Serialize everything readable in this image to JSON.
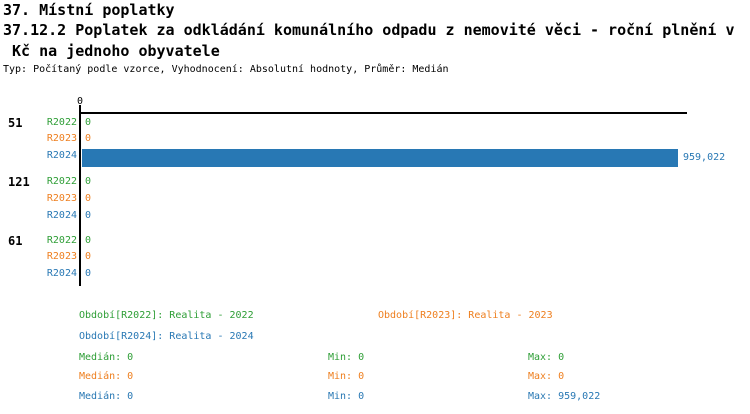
{
  "header": {
    "title": "37. Místní poplatky",
    "subtitle_line1": "37.12.2 Poplatek za odkládání komunálního odpadu z nemovité věci - roční plnění v",
    "subtitle_line2": " Kč na jednoho obyvatele",
    "meta": "Typ: Počítaný podle vzorce, Vyhodnocení: Absolutní hodnoty, Průměr: Medián"
  },
  "colors": {
    "r2022": "#2e9e36",
    "r2023": "#ee7f1f",
    "r2024": "#2878b4",
    "axis": "#000000"
  },
  "axis": {
    "tick_label": "0"
  },
  "groups": [
    {
      "label": "51",
      "rows": [
        {
          "series": "R2022",
          "value_label": "0"
        },
        {
          "series": "R2023",
          "value_label": "0"
        },
        {
          "series": "R2024",
          "value_label": "959,022"
        }
      ]
    },
    {
      "label": "121",
      "rows": [
        {
          "series": "R2022",
          "value_label": "0"
        },
        {
          "series": "R2023",
          "value_label": "0"
        },
        {
          "series": "R2024",
          "value_label": "0"
        }
      ]
    },
    {
      "label": "61",
      "rows": [
        {
          "series": "R2022",
          "value_label": "0"
        },
        {
          "series": "R2023",
          "value_label": "0"
        },
        {
          "series": "R2024",
          "value_label": "0"
        }
      ]
    }
  ],
  "legend": [
    {
      "text": "Období[R2022]: Realita - 2022"
    },
    {
      "text": "Období[R2023]: Realita - 2023"
    },
    {
      "text": "Období[R2024]: Realita - 2024"
    }
  ],
  "stats": [
    {
      "median": "Medián: 0",
      "min": "Min: 0",
      "max": "Max: 0"
    },
    {
      "median": "Medián: 0",
      "min": "Min: 0",
      "max": "Max: 0"
    },
    {
      "median": "Medián: 0",
      "min": "Min: 0",
      "max": "Max: 959,022"
    }
  ],
  "chart_data": {
    "type": "bar",
    "orientation": "horizontal",
    "title": "37. Místní poplatky",
    "subtitle": "37.12.2 Poplatek za odkládání komunálního odpadu z nemovité věci - roční plnění v Kč na jednoho obyvatele",
    "annotation": "Typ: Počítaný podle vzorce, Vyhodnocení: Absolutní hodnoty, Průměr: Medián",
    "categories": [
      "51",
      "121",
      "61"
    ],
    "series": [
      {
        "name": "R2022",
        "legend": "Období[R2022]: Realita - 2022",
        "color": "#2e9e36",
        "values": [
          0,
          0,
          0
        ],
        "median": 0,
        "min": 0,
        "max": 0
      },
      {
        "name": "R2023",
        "legend": "Období[R2023]: Realita - 2023",
        "color": "#ee7f1f",
        "values": [
          0,
          0,
          0
        ],
        "median": 0,
        "min": 0,
        "max": 0
      },
      {
        "name": "R2024",
        "legend": "Období[R2024]: Realita - 2024",
        "color": "#2878b4",
        "values": [
          959022,
          0,
          0
        ],
        "median": 0,
        "min": 0,
        "max": 959022
      }
    ],
    "x_ticks": [
      0
    ],
    "xlim": [
      0,
      978000
    ],
    "grid": false,
    "legend_position": "bottom"
  }
}
